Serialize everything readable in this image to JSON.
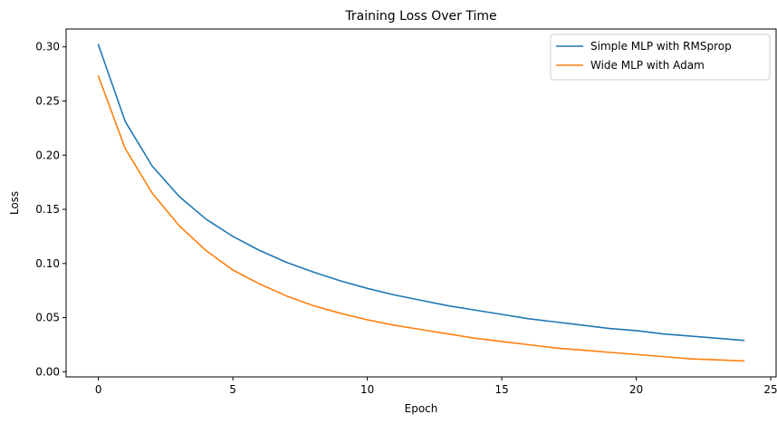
{
  "chart_data": {
    "type": "line",
    "title": "Training Loss Over Time",
    "xlabel": "Epoch",
    "ylabel": "Loss",
    "xlim": [
      -1.2,
      25.2
    ],
    "ylim": [
      -0.0047,
      0.3165
    ],
    "xticks": [
      0,
      5,
      10,
      15,
      20,
      25
    ],
    "yticks": [
      0.0,
      0.05,
      0.1,
      0.15,
      0.2,
      0.25,
      0.3
    ],
    "xtick_labels": [
      "0",
      "5",
      "10",
      "15",
      "20",
      "25"
    ],
    "ytick_labels": [
      "0.00",
      "0.05",
      "0.10",
      "0.15",
      "0.20",
      "0.25",
      "0.30"
    ],
    "grid": false,
    "legend_position": "top-right",
    "x": [
      0,
      1,
      2,
      3,
      4,
      5,
      6,
      7,
      8,
      9,
      10,
      11,
      12,
      13,
      14,
      15,
      16,
      17,
      18,
      19,
      20,
      21,
      22,
      23,
      24
    ],
    "series": [
      {
        "name": "Simple MLP with RMSprop",
        "color": "#1f77b4",
        "values": [
          0.302,
          0.231,
          0.19,
          0.162,
          0.141,
          0.125,
          0.112,
          0.101,
          0.092,
          0.084,
          0.077,
          0.071,
          0.066,
          0.061,
          0.057,
          0.053,
          0.049,
          0.046,
          0.043,
          0.04,
          0.038,
          0.035,
          0.033,
          0.031,
          0.029
        ]
      },
      {
        "name": "Wide MLP with Adam",
        "color": "#ff7f0e",
        "values": [
          0.273,
          0.206,
          0.165,
          0.135,
          0.112,
          0.094,
          0.081,
          0.07,
          0.061,
          0.054,
          0.048,
          0.043,
          0.039,
          0.035,
          0.031,
          0.028,
          0.025,
          0.022,
          0.02,
          0.018,
          0.016,
          0.014,
          0.012,
          0.011,
          0.01
        ]
      }
    ]
  }
}
